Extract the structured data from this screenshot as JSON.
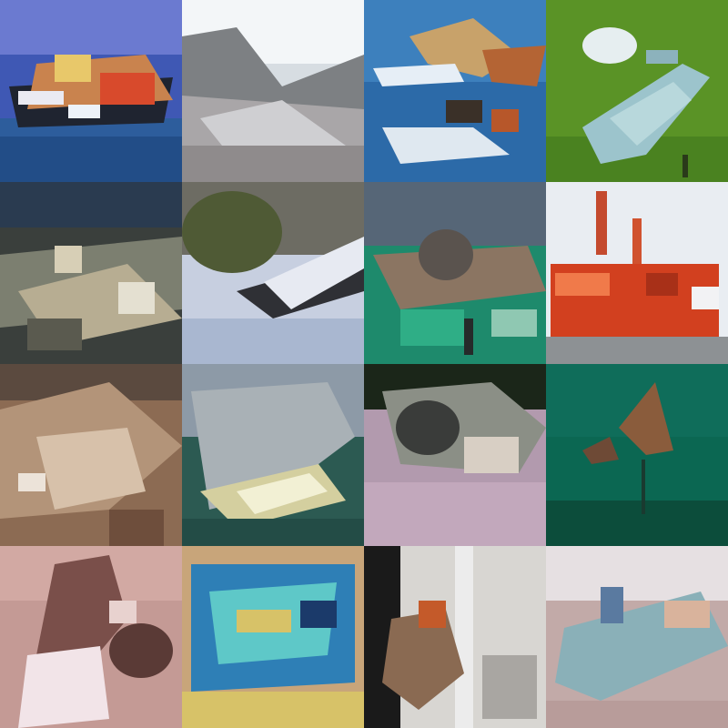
{
  "grid": {
    "rows": 4,
    "columns": 4,
    "tiles": [
      {
        "id": "r1c1",
        "subject": "ship-on-water",
        "colors": {
          "top": "#5b6fc9",
          "mid": "#c0804a",
          "bottom": "#2f5f9e",
          "accent": "#d64a2a"
        }
      },
      {
        "id": "r1c2",
        "subject": "grey-airplane",
        "colors": {
          "top": "#eef2f5",
          "mid": "#8c8f92",
          "bottom": "#b9b7b8",
          "accent": "#6d6e70"
        }
      },
      {
        "id": "r1c3",
        "subject": "boats-in-harbor",
        "colors": {
          "top": "#2f6fae",
          "mid": "#3e87c6",
          "bottom": "#2e6fae",
          "accent": "#b86a3a"
        }
      },
      {
        "id": "r1c4",
        "subject": "bird-on-grass",
        "colors": {
          "top": "#5f9a2a",
          "mid": "#9cc8d0",
          "bottom": "#4f8a1e",
          "accent": "#d8e6ea"
        }
      },
      {
        "id": "r2c1",
        "subject": "cluttered-scene",
        "colors": {
          "top": "#2b3d52",
          "mid": "#8b8f80",
          "bottom": "#3a3d37",
          "accent": "#d3c7a9"
        }
      },
      {
        "id": "r2c2",
        "subject": "aircraft-in-sky",
        "colors": {
          "top": "#6e6d65",
          "mid": "#4f5a3a",
          "bottom": "#c7cfe0",
          "accent": "#2f3035"
        }
      },
      {
        "id": "r2c3",
        "subject": "animal-by-water",
        "colors": {
          "top": "#566678",
          "mid": "#8a7562",
          "bottom": "#1f8a6e",
          "accent": "#9c7a5e"
        }
      },
      {
        "id": "r2c4",
        "subject": "red-vehicle",
        "colors": {
          "top": "#e8ecf2",
          "mid": "#d2401f",
          "bottom": "#8b8f93",
          "accent": "#f07a4a"
        }
      },
      {
        "id": "r3c1",
        "subject": "brown-animal-closeup",
        "colors": {
          "top": "#6b5748",
          "mid": "#b59378",
          "bottom": "#8c6a52",
          "accent": "#ece3d9"
        }
      },
      {
        "id": "r3c2",
        "subject": "white-boat-deck",
        "colors": {
          "top": "#8e9ba8",
          "mid": "#d4cfa0",
          "bottom": "#2c5a52",
          "accent": "#f2f0d4"
        }
      },
      {
        "id": "r3c3",
        "subject": "cat-on-blanket",
        "colors": {
          "top": "#1a2418",
          "mid": "#8b8f86",
          "bottom": "#b29aae",
          "accent": "#d8cfc4"
        }
      },
      {
        "id": "r3c4",
        "subject": "boat-in-green-sea",
        "colors": {
          "top": "#0f6a58",
          "mid": "#0b6752",
          "bottom": "#0c4d3b",
          "accent": "#8a5c3c"
        }
      },
      {
        "id": "r4c1",
        "subject": "pink-cat-portrait",
        "colors": {
          "top": "#d2a9a3",
          "mid": "#7a4f4a",
          "bottom": "#c49a95",
          "accent": "#f2e4e8"
        }
      },
      {
        "id": "r4c2",
        "subject": "blue-yellow-object",
        "colors": {
          "top": "#c8a57a",
          "mid": "#2e7fb6",
          "bottom": "#d7c268",
          "accent": "#5ec8c8"
        }
      },
      {
        "id": "r4c3",
        "subject": "street-with-dog",
        "colors": {
          "top": "#1a1a1a",
          "mid": "#d8d6d2",
          "bottom": "#8a6a52",
          "accent": "#c45a2a"
        }
      },
      {
        "id": "r4c4",
        "subject": "bird-on-rock",
        "colors": {
          "top": "#e6e0e2",
          "mid": "#8ab0b8",
          "bottom": "#c2aaa8",
          "accent": "#5a7aa0"
        }
      }
    ]
  }
}
